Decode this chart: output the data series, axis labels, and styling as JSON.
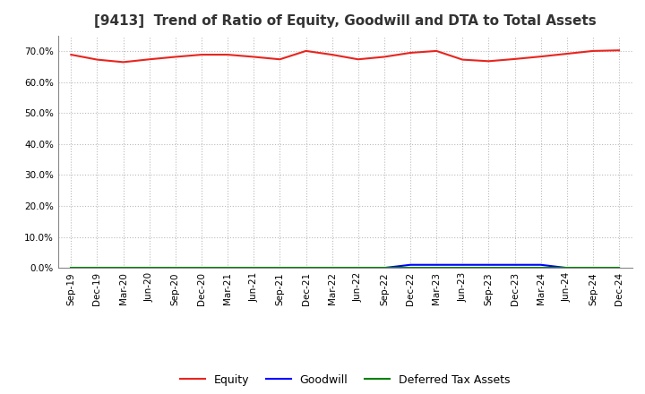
{
  "title": "[9413]  Trend of Ratio of Equity, Goodwill and DTA to Total Assets",
  "x_labels": [
    "Sep-19",
    "Dec-19",
    "Mar-20",
    "Jun-20",
    "Sep-20",
    "Dec-20",
    "Mar-21",
    "Jun-21",
    "Sep-21",
    "Dec-21",
    "Mar-22",
    "Jun-22",
    "Sep-22",
    "Dec-22",
    "Mar-23",
    "Jun-23",
    "Sep-23",
    "Dec-23",
    "Mar-24",
    "Jun-24",
    "Sep-24",
    "Dec-24"
  ],
  "equity": [
    0.688,
    0.672,
    0.664,
    0.673,
    0.681,
    0.688,
    0.688,
    0.681,
    0.673,
    0.7,
    0.688,
    0.673,
    0.681,
    0.694,
    0.7,
    0.672,
    0.667,
    0.674,
    0.682,
    0.691,
    0.7,
    0.702
  ],
  "goodwill": [
    0.0,
    0.0,
    0.0,
    0.0,
    0.0,
    0.0,
    0.0,
    0.0,
    0.0,
    0.0,
    0.0,
    0.0,
    0.0,
    0.01,
    0.01,
    0.01,
    0.01,
    0.01,
    0.01,
    0.0,
    0.0,
    0.0
  ],
  "dta": [
    0.0,
    0.0,
    0.0,
    0.0,
    0.0,
    0.0,
    0.0,
    0.0,
    0.0,
    0.0,
    0.0,
    0.0,
    0.0,
    0.0,
    0.0,
    0.0,
    0.0,
    0.0,
    0.0,
    0.0,
    0.0,
    0.0
  ],
  "equity_color": "#e8251f",
  "goodwill_color": "#0000ff",
  "dta_color": "#008000",
  "ylim_min": 0.0,
  "ylim_max": 0.75,
  "yticks": [
    0.0,
    0.1,
    0.2,
    0.3,
    0.4,
    0.5,
    0.6,
    0.7
  ],
  "bg_color": "#ffffff",
  "plot_bg_color": "#ffffff",
  "grid_color": "#bbbbbb",
  "title_fontsize": 11,
  "tick_fontsize": 7.5,
  "legend_fontsize": 9
}
